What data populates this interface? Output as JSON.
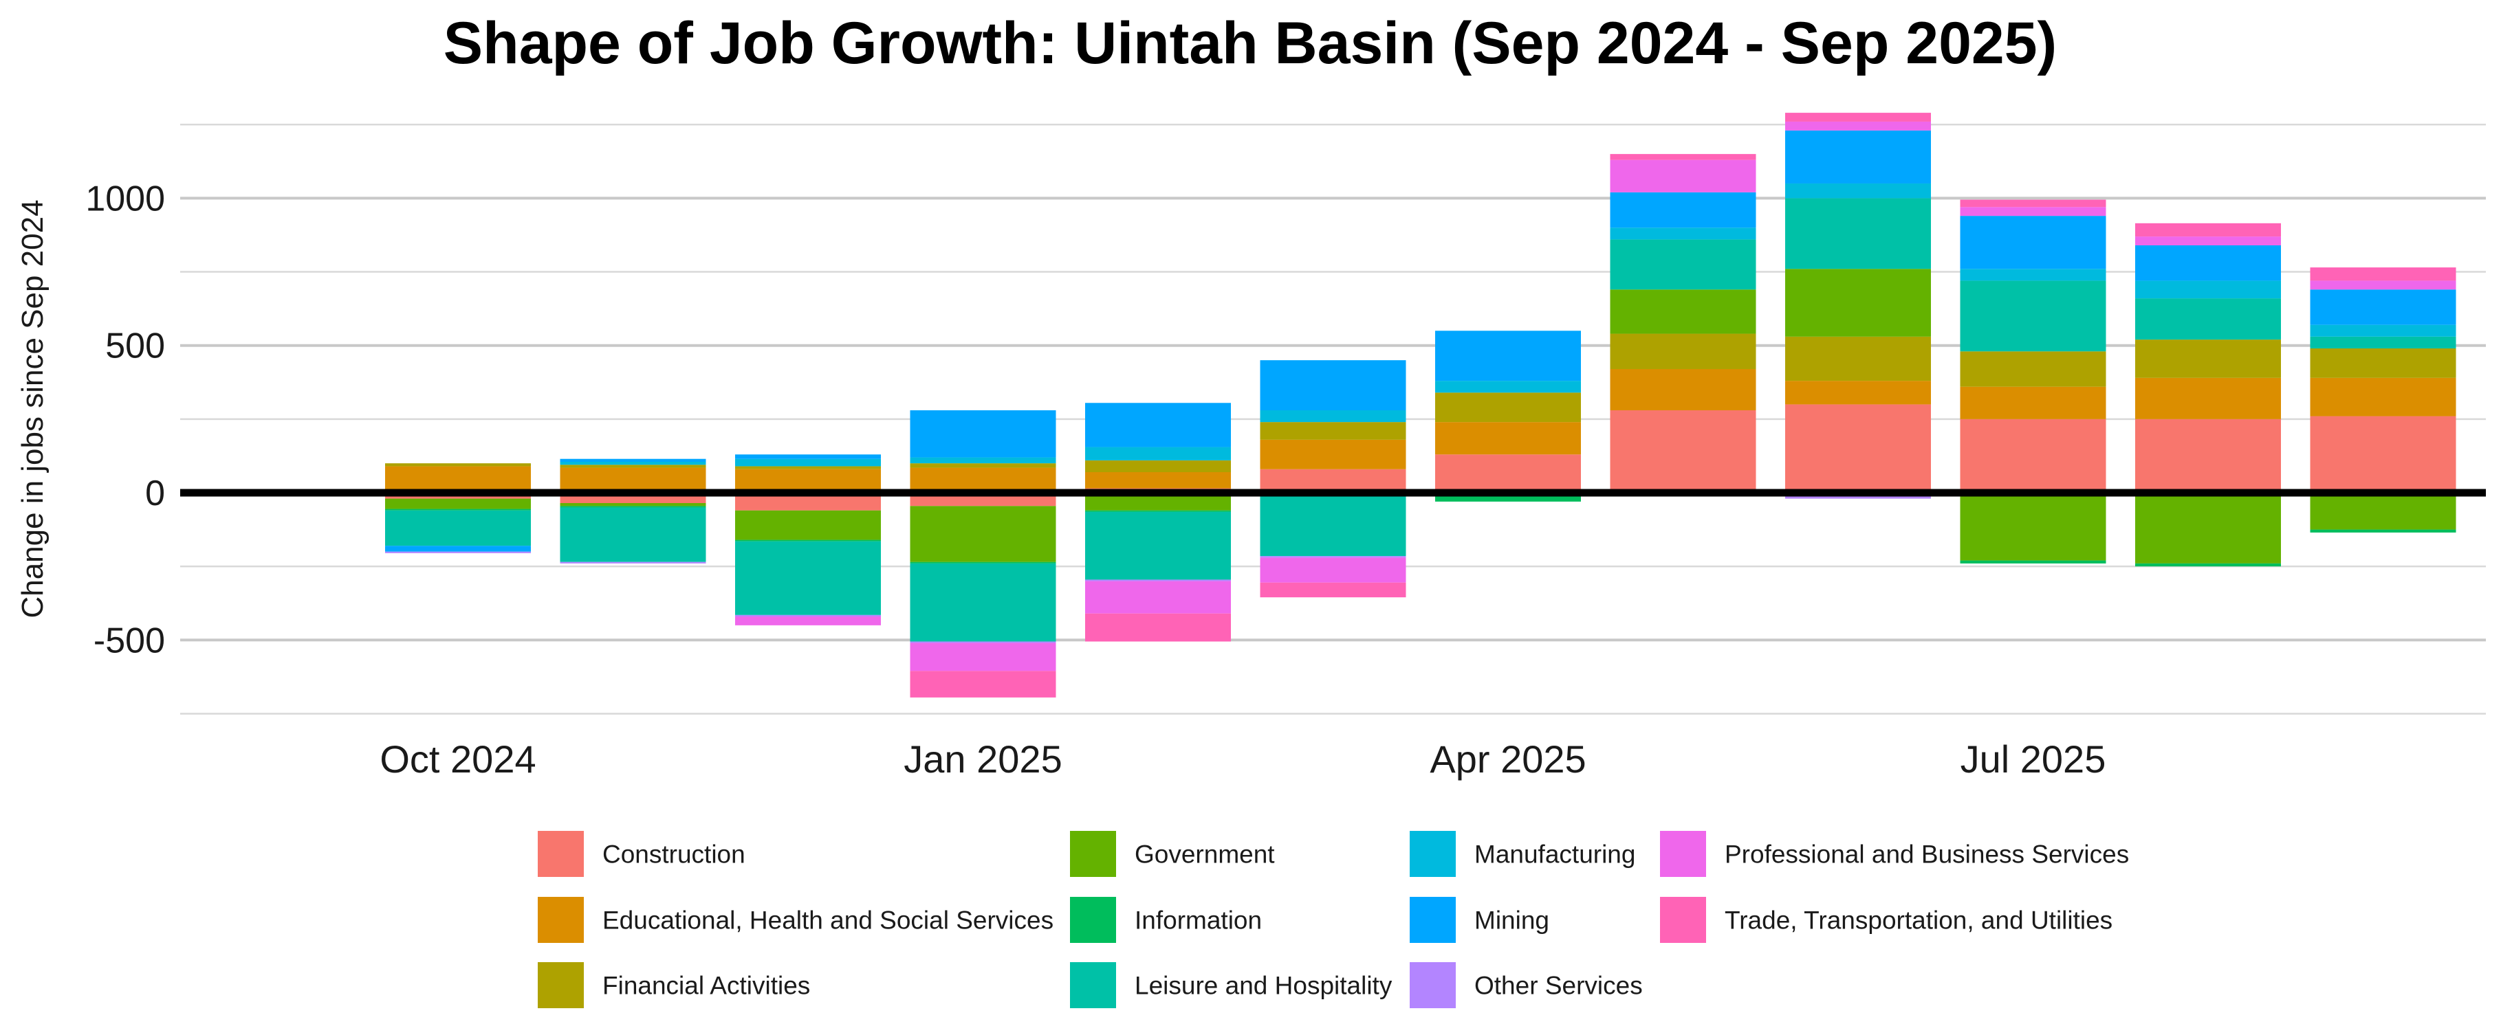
{
  "chart_data": {
    "type": "bar",
    "stacked": true,
    "title": "Shape of Job Growth: Uintah Basin (Sep 2024 - Sep 2025)",
    "xlabel": "",
    "ylabel": "Change in jobs since Sep 2024",
    "ylim": [
      -750,
      1280
    ],
    "y_ticks": [
      -500,
      0,
      500,
      1000
    ],
    "y_tick_labels": [
      "-500",
      "0",
      "500",
      "1000"
    ],
    "x_tick_labels": [
      {
        "label": "Oct 2024",
        "category": "2024-10"
      },
      {
        "label": "Jan 2025",
        "category": "2025-01"
      },
      {
        "label": "Apr 2025",
        "category": "2025-04"
      },
      {
        "label": "Jul 2025",
        "category": "2025-07"
      }
    ],
    "grid": true,
    "zero_line": true,
    "legend_position": "bottom",
    "categories": [
      "2024-10",
      "2024-11",
      "2024-12",
      "2025-01",
      "2025-02",
      "2025-03",
      "2025-04",
      "2025-05",
      "2025-06",
      "2025-07",
      "2025-08",
      "2025-09"
    ],
    "series": [
      {
        "name": "Construction",
        "color": "#F8766D",
        "values": [
          -20,
          -35,
          -60,
          -45,
          15,
          80,
          130,
          280,
          300,
          250,
          250,
          260
        ]
      },
      {
        "name": "Educational, Health and Social Services",
        "color": "#DB8E00",
        "values": [
          90,
          85,
          80,
          85,
          55,
          100,
          110,
          140,
          80,
          110,
          140,
          130
        ]
      },
      {
        "name": "Financial Activities",
        "color": "#AEA200",
        "values": [
          10,
          10,
          10,
          15,
          40,
          60,
          100,
          120,
          150,
          120,
          130,
          100
        ]
      },
      {
        "name": "Government",
        "color": "#64B200",
        "values": [
          -35,
          -10,
          -100,
          -190,
          -60,
          0,
          0,
          150,
          230,
          -230,
          -240,
          -125
        ]
      },
      {
        "name": "Information",
        "color": "#00BD5C",
        "values": [
          -5,
          -5,
          -5,
          -5,
          -5,
          -5,
          -30,
          0,
          0,
          -10,
          -10,
          -10
        ]
      },
      {
        "name": "Leisure and Hospitality",
        "color": "#00C1A7",
        "values": [
          -120,
          -185,
          -250,
          -265,
          -230,
          -210,
          0,
          170,
          240,
          240,
          140,
          40
        ]
      },
      {
        "name": "Manufacturing",
        "color": "#00BADE",
        "values": [
          0,
          10,
          25,
          20,
          45,
          40,
          40,
          40,
          50,
          40,
          60,
          40
        ]
      },
      {
        "name": "Mining",
        "color": "#00A6FF",
        "values": [
          -20,
          10,
          15,
          160,
          150,
          170,
          170,
          120,
          180,
          180,
          120,
          120
        ]
      },
      {
        "name": "Other Services",
        "color": "#B385FF",
        "values": [
          -5,
          -5,
          -5,
          -5,
          -5,
          -5,
          0,
          0,
          -20,
          0,
          0,
          0
        ]
      },
      {
        "name": "Professional and Business Services",
        "color": "#EF67EB",
        "values": [
          0,
          0,
          -30,
          -95,
          -110,
          -85,
          0,
          110,
          30,
          30,
          30,
          30
        ]
      },
      {
        "name": "Trade, Transportation, and Utilities",
        "color": "#FF63B6",
        "values": [
          0,
          0,
          0,
          -90,
          -95,
          -50,
          0,
          20,
          30,
          25,
          45,
          45
        ]
      }
    ]
  }
}
